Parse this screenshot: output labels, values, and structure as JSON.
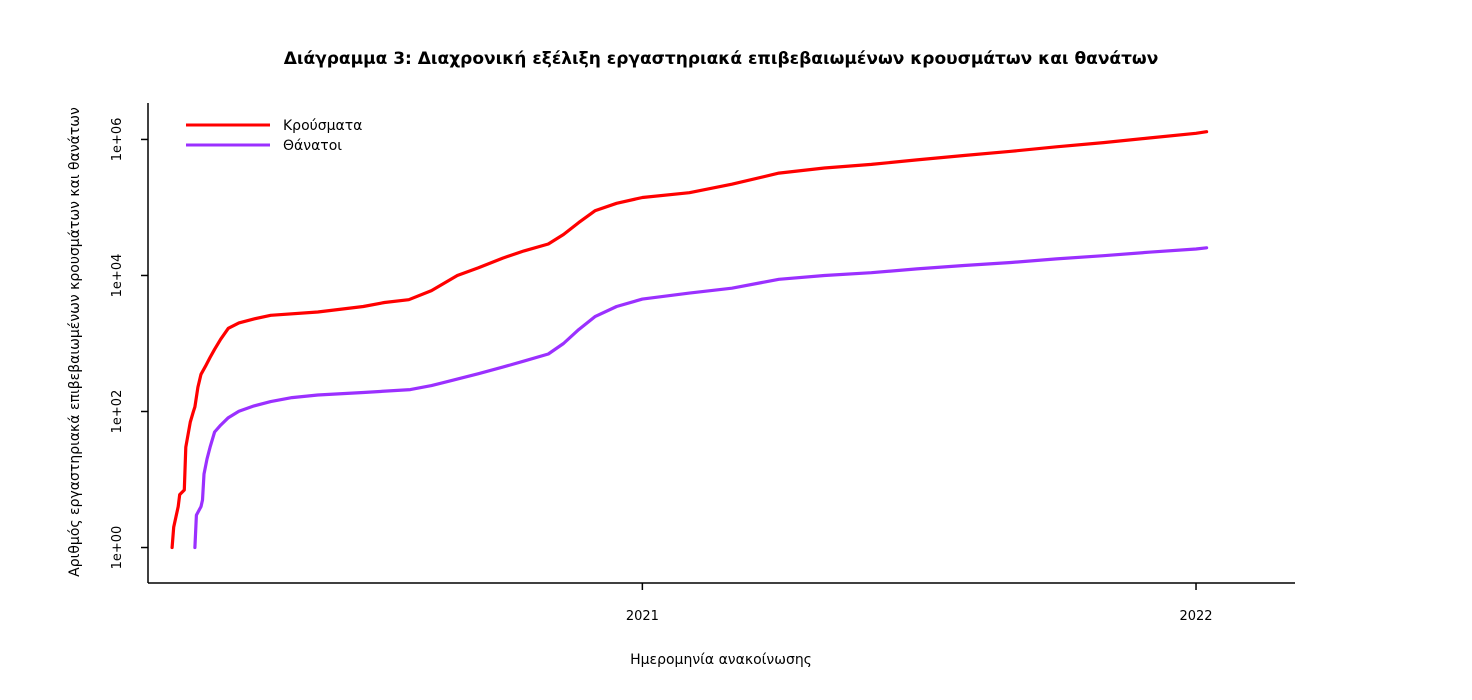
{
  "chart_data": {
    "type": "line",
    "title": "Διάγραμμα 3: Διαχρονική εξέλιξη εργαστηριακά επιβεβαιωμένων κρουσμάτων και θανάτων",
    "xlabel": "Ημερομηνία ανακοίνωσης",
    "ylabel": "Αριθμός εργαστηριακά επιβεβαιωμένων κρουσμάτων και θανάτων",
    "x_axis": {
      "type": "date",
      "range": [
        "2020-02-18",
        "2022-02-28"
      ],
      "ticks": [
        {
          "value": "2021-01-01",
          "label": "2021"
        },
        {
          "value": "2022-01-01",
          "label": "2022"
        }
      ]
    },
    "y_axis": {
      "scale": "log10",
      "range": [
        0.5,
        3000000
      ],
      "ticks": [
        {
          "value": 1,
          "label": "1e+00"
        },
        {
          "value": 100,
          "label": "1e+02"
        },
        {
          "value": 10000,
          "label": "1e+04"
        },
        {
          "value": 1000000,
          "label": "1e+06"
        }
      ]
    },
    "grid": false,
    "legend_position": "top-left",
    "series": [
      {
        "name": "Κρούσματα",
        "color": "#ff0000",
        "points": [
          [
            "2020-02-26",
            1
          ],
          [
            "2020-02-27",
            2
          ],
          [
            "2020-03-01",
            4
          ],
          [
            "2020-03-02",
            6
          ],
          [
            "2020-03-05",
            7
          ],
          [
            "2020-03-06",
            30
          ],
          [
            "2020-03-09",
            70
          ],
          [
            "2020-03-11",
            100
          ],
          [
            "2020-03-12",
            117
          ],
          [
            "2020-03-14",
            228
          ],
          [
            "2020-03-16",
            352
          ],
          [
            "2020-03-19",
            464
          ],
          [
            "2020-03-22",
            624
          ],
          [
            "2020-03-25",
            821
          ],
          [
            "2020-03-29",
            1156
          ],
          [
            "2020-04-03",
            1673
          ],
          [
            "2020-04-10",
            2011
          ],
          [
            "2020-04-20",
            2300
          ],
          [
            "2020-05-01",
            2600
          ],
          [
            "2020-06-01",
            2900
          ],
          [
            "2020-07-01",
            3500
          ],
          [
            "2020-07-15",
            4000
          ],
          [
            "2020-07-31",
            4400
          ],
          [
            "2020-08-15",
            6000
          ],
          [
            "2020-09-01",
            10000
          ],
          [
            "2020-09-15",
            13000
          ],
          [
            "2020-10-01",
            18000
          ],
          [
            "2020-10-15",
            23000
          ],
          [
            "2020-10-31",
            29000
          ],
          [
            "2020-11-10",
            40000
          ],
          [
            "2020-11-20",
            60000
          ],
          [
            "2020-12-01",
            90000
          ],
          [
            "2020-12-15",
            115000
          ],
          [
            "2021-01-01",
            140000
          ],
          [
            "2021-02-01",
            165000
          ],
          [
            "2021-03-01",
            220000
          ],
          [
            "2021-04-01",
            320000
          ],
          [
            "2021-05-01",
            380000
          ],
          [
            "2021-06-01",
            430000
          ],
          [
            "2021-07-01",
            500000
          ],
          [
            "2021-08-01",
            580000
          ],
          [
            "2021-09-01",
            670000
          ],
          [
            "2021-10-01",
            780000
          ],
          [
            "2021-11-01",
            900000
          ],
          [
            "2021-12-01",
            1050000
          ],
          [
            "2022-01-01",
            1230000
          ],
          [
            "2022-01-08",
            1300000
          ]
        ]
      },
      {
        "name": "Θάνατοι",
        "color": "#9b30ff",
        "points": [
          [
            "2020-03-12",
            1
          ],
          [
            "2020-03-13",
            3
          ],
          [
            "2020-03-16",
            4
          ],
          [
            "2020-03-17",
            5
          ],
          [
            "2020-03-18",
            12
          ],
          [
            "2020-03-20",
            20
          ],
          [
            "2020-03-22",
            30
          ],
          [
            "2020-03-25",
            50
          ],
          [
            "2020-03-29",
            63
          ],
          [
            "2020-04-03",
            81
          ],
          [
            "2020-04-10",
            101
          ],
          [
            "2020-04-20",
            121
          ],
          [
            "2020-05-01",
            140
          ],
          [
            "2020-05-15",
            160
          ],
          [
            "2020-06-01",
            175
          ],
          [
            "2020-07-01",
            190
          ],
          [
            "2020-08-01",
            210
          ],
          [
            "2020-08-15",
            240
          ],
          [
            "2020-09-01",
            300
          ],
          [
            "2020-09-15",
            360
          ],
          [
            "2020-10-01",
            450
          ],
          [
            "2020-10-15",
            550
          ],
          [
            "2020-10-31",
            700
          ],
          [
            "2020-11-10",
            1000
          ],
          [
            "2020-11-20",
            1600
          ],
          [
            "2020-12-01",
            2500
          ],
          [
            "2020-12-15",
            3500
          ],
          [
            "2021-01-01",
            4500
          ],
          [
            "2021-02-01",
            5500
          ],
          [
            "2021-03-01",
            6500
          ],
          [
            "2021-04-01",
            8800
          ],
          [
            "2021-05-01",
            10000
          ],
          [
            "2021-06-01",
            11000
          ],
          [
            "2021-07-01",
            12500
          ],
          [
            "2021-08-01",
            14000
          ],
          [
            "2021-09-01",
            15500
          ],
          [
            "2021-10-01",
            17500
          ],
          [
            "2021-11-01",
            19500
          ],
          [
            "2021-12-01",
            22000
          ],
          [
            "2022-01-01",
            24500
          ],
          [
            "2022-01-08",
            25500
          ]
        ]
      }
    ]
  }
}
